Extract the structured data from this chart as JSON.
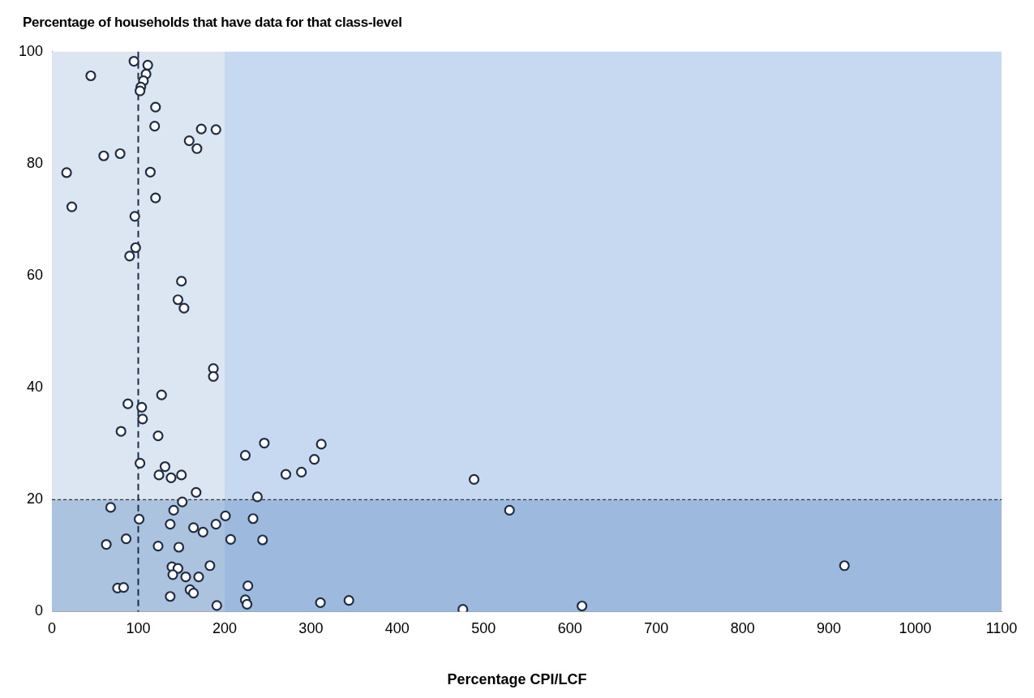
{
  "chart_data": {
    "type": "scatter",
    "title": "Percentage of households that have data for that class-level",
    "xlabel": "Percentage CPI/LCF",
    "xlim": [
      0,
      1100
    ],
    "xticks": [
      0,
      100,
      200,
      300,
      400,
      500,
      600,
      700,
      800,
      900,
      1000,
      1100
    ],
    "ylim": [
      0,
      100
    ],
    "yticks": [
      0,
      20,
      40,
      60,
      80,
      100
    ],
    "grid": false,
    "legend": false,
    "marker": "circle",
    "series": [
      {
        "color": "#1f2d45",
        "x": [
          45,
          95,
          111,
          109,
          106,
          103,
          102,
          120,
          119,
          173,
          190,
          159,
          168,
          60,
          79,
          114,
          17,
          120,
          23,
          96,
          97,
          90,
          150,
          146,
          153,
          187,
          187,
          127,
          88,
          104,
          105,
          80,
          123,
          102,
          131,
          124,
          138,
          150,
          167,
          151,
          68,
          141,
          101,
          137,
          164,
          175,
          190,
          201,
          63,
          86,
          123,
          147,
          207,
          139,
          146,
          140,
          155,
          170,
          183,
          76,
          83,
          160,
          164,
          137,
          191,
          246,
          224,
          312,
          304,
          289,
          271,
          238,
          233,
          244,
          227,
          224,
          226,
          311,
          344,
          489,
          530,
          476,
          614,
          918
        ],
        "values": [
          95.7,
          98.3,
          97.6,
          96,
          94.8,
          93.7,
          93,
          90.1,
          86.7,
          86.2,
          86.1,
          84.1,
          82.7,
          81.4,
          81.8,
          78.5,
          78.4,
          73.9,
          72.3,
          70.6,
          65,
          63.5,
          59,
          55.7,
          54.2,
          43.4,
          42,
          38.7,
          37.1,
          36.5,
          34.4,
          32.2,
          31.4,
          26.5,
          25.9,
          24.4,
          23.9,
          24.4,
          21.3,
          19.6,
          18.6,
          18.1,
          16.5,
          15.6,
          15,
          14.2,
          15.6,
          17.1,
          12,
          13,
          11.7,
          11.5,
          12.9,
          8,
          7.7,
          6.6,
          6.2,
          6.2,
          8.2,
          4.2,
          4.3,
          3.9,
          3.3,
          2.7,
          1.1,
          30.1,
          27.9,
          29.9,
          27.2,
          24.9,
          24.5,
          20.5,
          16.6,
          12.8,
          4.6,
          2.1,
          1.3,
          1.6,
          2,
          23.6,
          18.1,
          0.4,
          1,
          8.2
        ]
      }
    ],
    "bands": [
      {
        "axis": "x",
        "from": 0,
        "to": 200,
        "color": "#dce6f2"
      },
      {
        "axis": "x",
        "from": 200,
        "to": 1100,
        "color": "#c6d9f0"
      },
      {
        "axis": "y",
        "from": 0,
        "to": 20,
        "color": "#4f81bd"
      }
    ],
    "ref_lines": [
      {
        "axis": "x",
        "value": 100,
        "color": "#1f2d45",
        "line_style": "dashed"
      },
      {
        "axis": "y",
        "value": 20,
        "color": "#333333",
        "line_style": "dotted"
      }
    ]
  }
}
